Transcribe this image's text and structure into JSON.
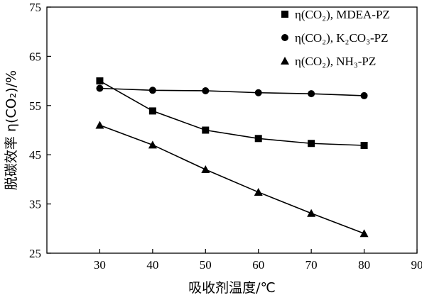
{
  "chart_data": {
    "type": "line",
    "xlabel": "吸收剂温度/℃",
    "ylabel": "脱碳效率 η(CO₂)/%",
    "xlim": [
      20,
      90
    ],
    "ylim": [
      25,
      75
    ],
    "xticks": [
      30,
      40,
      50,
      60,
      70,
      80,
      90
    ],
    "yticks": [
      25,
      35,
      45,
      55,
      65,
      75
    ],
    "x": [
      30,
      40,
      50,
      60,
      70,
      80
    ],
    "grid": false,
    "legend_position": "top-right",
    "series": [
      {
        "name": "η(CO₂), MDEA-PZ",
        "marker": "square",
        "values": [
          60.0,
          53.9,
          50.0,
          48.3,
          47.3,
          46.9
        ]
      },
      {
        "name": "η(CO₂), K₂CO₃-PZ",
        "marker": "circle",
        "values": [
          58.5,
          58.1,
          58.0,
          57.6,
          57.4,
          57.0
        ]
      },
      {
        "name": "η(CO₂), NH₃-PZ",
        "marker": "triangle",
        "values": [
          51.0,
          47.0,
          42.0,
          37.4,
          33.1,
          29.0
        ]
      }
    ]
  }
}
